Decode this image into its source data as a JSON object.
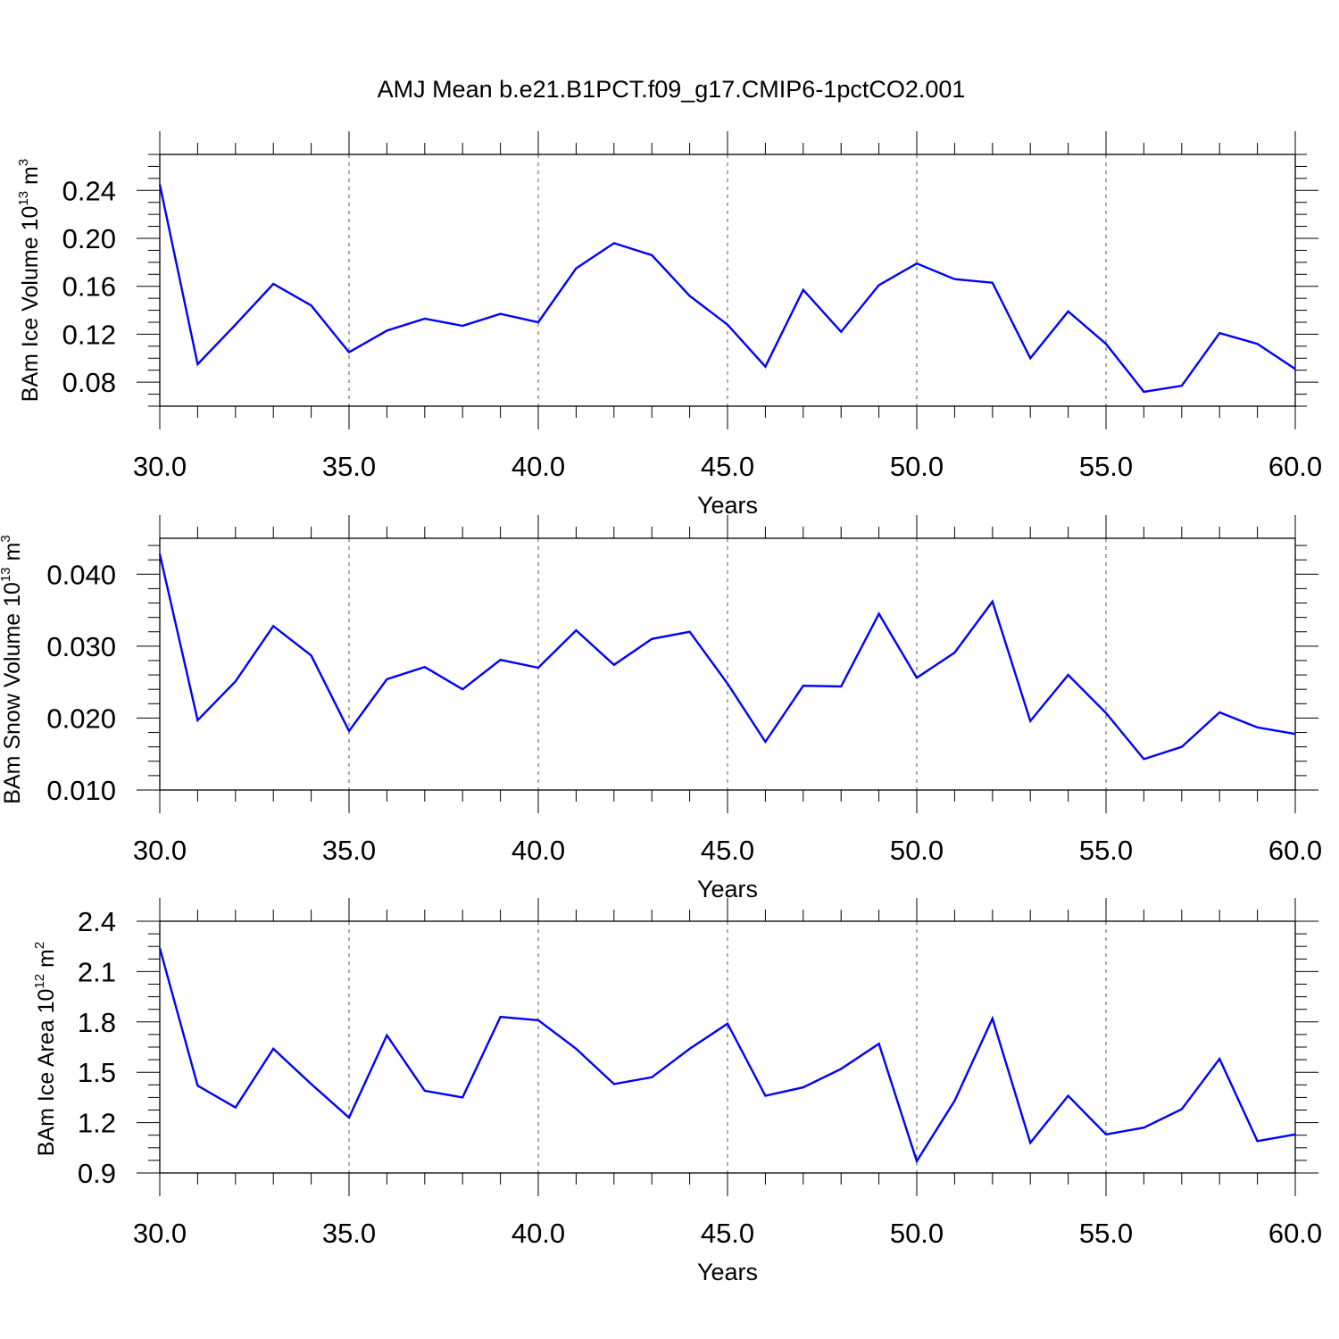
{
  "title": "AMJ Mean b.e21.B1PCT.f09_g17.CMIP6-1pctCO2.001",
  "chart_data": [
    {
      "type": "line",
      "title": "AMJ Mean b.e21.B1PCT.f09_g17.CMIP6-1pctCO2.001",
      "xlabel": "Years",
      "ylabel": {
        "prefix": "BAm Ice Volume 10",
        "exp": "13",
        "unit": " m",
        "unit_exp": "3"
      },
      "xlim": [
        30,
        60
      ],
      "ylim": [
        0.06,
        0.27
      ],
      "x_ticks": [
        "30.0",
        "35.0",
        "40.0",
        "45.0",
        "50.0",
        "55.0",
        "60.0"
      ],
      "y_ticks": [
        0.08,
        0.12,
        0.16,
        0.2,
        0.24
      ],
      "y_tick_labels": [
        "0.08",
        "0.12",
        "0.16",
        "0.20",
        "0.24"
      ],
      "y_minor": 0.01,
      "grid": "vertical-dashed",
      "color": "#0000ff",
      "x": [
        30,
        31,
        32,
        33,
        34,
        35,
        36,
        37,
        38,
        39,
        40,
        41,
        42,
        43,
        44,
        45,
        46,
        47,
        48,
        49,
        50,
        51,
        52,
        53,
        54,
        55,
        56,
        57,
        58,
        59,
        60
      ],
      "values": [
        0.245,
        0.095,
        0.128,
        0.162,
        0.144,
        0.105,
        0.123,
        0.133,
        0.127,
        0.137,
        0.13,
        0.175,
        0.196,
        0.186,
        0.152,
        0.128,
        0.093,
        0.157,
        0.122,
        0.161,
        0.179,
        0.166,
        0.163,
        0.1,
        0.139,
        0.112,
        0.072,
        0.077,
        0.121,
        0.112,
        0.091
      ]
    },
    {
      "type": "line",
      "xlabel": "Years",
      "ylabel": {
        "prefix": "BAm Snow Volume 10",
        "exp": "13",
        "unit": " m",
        "unit_exp": "3"
      },
      "xlim": [
        30,
        60
      ],
      "ylim": [
        0.01,
        0.045
      ],
      "x_ticks": [
        "30.0",
        "35.0",
        "40.0",
        "45.0",
        "50.0",
        "55.0",
        "60.0"
      ],
      "y_ticks": [
        0.01,
        0.02,
        0.03,
        0.04
      ],
      "y_tick_labels": [
        "0.010",
        "0.020",
        "0.030",
        "0.040"
      ],
      "y_minor": 0.002,
      "grid": "vertical-dashed",
      "color": "#0000ff",
      "x": [
        30,
        31,
        32,
        33,
        34,
        35,
        36,
        37,
        38,
        39,
        40,
        41,
        42,
        43,
        44,
        45,
        46,
        47,
        48,
        49,
        50,
        51,
        52,
        53,
        54,
        55,
        56,
        57,
        58,
        59,
        60
      ],
      "values": [
        0.0428,
        0.0197,
        0.0251,
        0.0328,
        0.0287,
        0.0182,
        0.0254,
        0.0271,
        0.024,
        0.0281,
        0.027,
        0.0322,
        0.0274,
        0.031,
        0.032,
        0.0248,
        0.0167,
        0.0245,
        0.0244,
        0.0345,
        0.0256,
        0.0291,
        0.0362,
        0.0196,
        0.026,
        0.0207,
        0.0143,
        0.016,
        0.0208,
        0.0187,
        0.0178
      ]
    },
    {
      "type": "line",
      "xlabel": "Years",
      "ylabel": {
        "prefix": "BAm Ice Area 10",
        "exp": "12",
        "unit": " m",
        "unit_exp": "2"
      },
      "xlim": [
        30,
        60
      ],
      "ylim": [
        0.9,
        2.4
      ],
      "x_ticks": [
        "30.0",
        "35.0",
        "40.0",
        "45.0",
        "50.0",
        "55.0",
        "60.0"
      ],
      "y_ticks": [
        0.9,
        1.2,
        1.5,
        1.8,
        2.1,
        2.4
      ],
      "y_tick_labels": [
        "0.9",
        "1.2",
        "1.5",
        "1.8",
        "2.1",
        "2.4"
      ],
      "y_minor": 0.075,
      "grid": "vertical-dashed",
      "color": "#0000ff",
      "x": [
        30,
        31,
        32,
        33,
        34,
        35,
        36,
        37,
        38,
        39,
        40,
        41,
        42,
        43,
        44,
        45,
        46,
        47,
        48,
        49,
        50,
        51,
        52,
        53,
        54,
        55,
        56,
        57,
        58,
        59,
        60
      ],
      "values": [
        2.24,
        1.42,
        1.29,
        1.64,
        1.43,
        1.23,
        1.72,
        1.39,
        1.35,
        1.83,
        1.81,
        1.64,
        1.43,
        1.47,
        1.64,
        1.79,
        1.36,
        1.41,
        1.52,
        1.67,
        0.97,
        1.33,
        1.82,
        1.08,
        1.36,
        1.13,
        1.17,
        1.28,
        1.58,
        1.09,
        1.13
      ]
    }
  ]
}
